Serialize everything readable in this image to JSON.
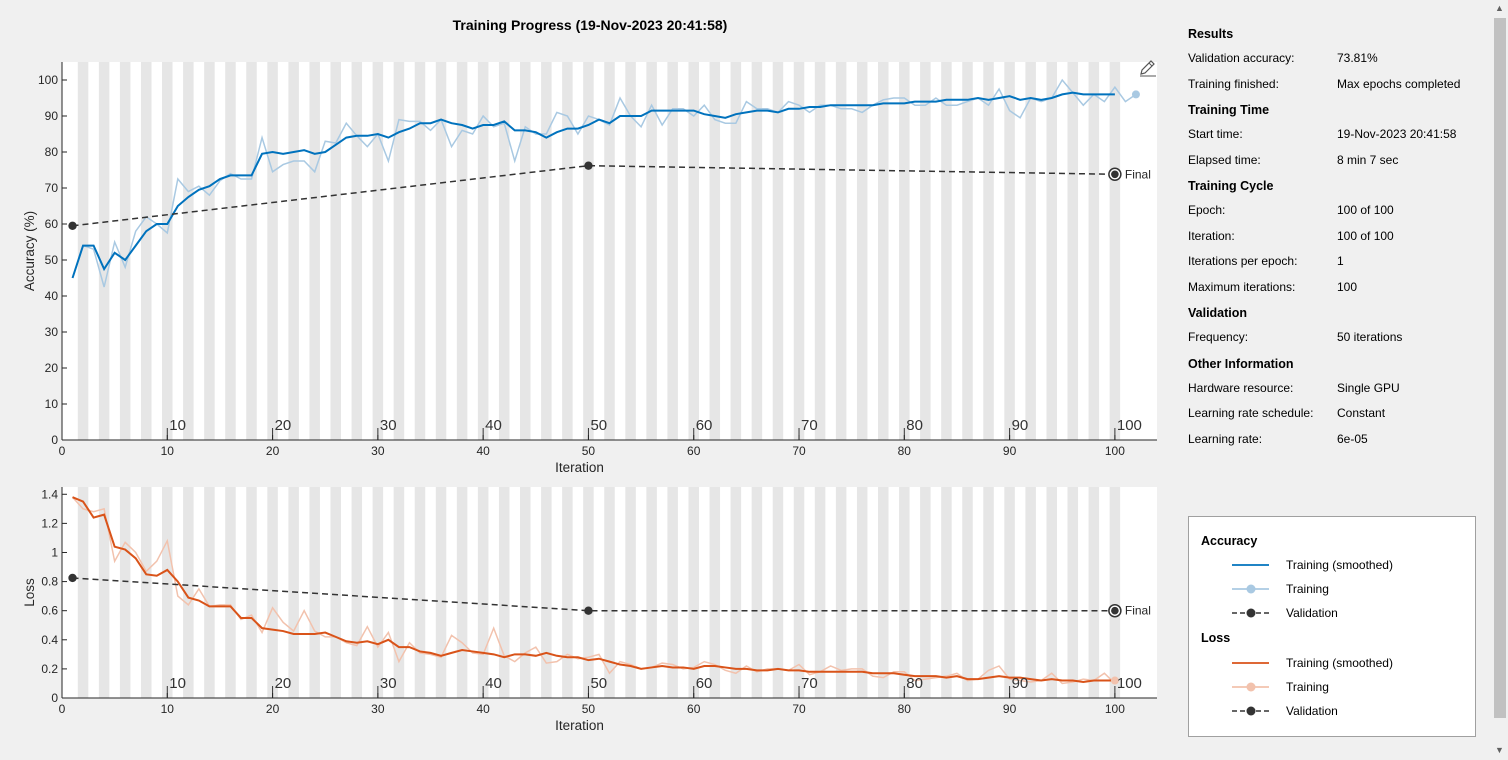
{
  "title": "Training Progress (19-Nov-2023 20:41:58)",
  "info": {
    "sections": [
      {
        "heading": "Results",
        "rows": [
          {
            "label": "Validation accuracy:",
            "value": "73.81%"
          },
          {
            "label": "Training finished:",
            "value": "Max epochs completed"
          }
        ]
      },
      {
        "heading": "Training Time",
        "rows": [
          {
            "label": "Start time:",
            "value": "19-Nov-2023 20:41:58"
          },
          {
            "label": "Elapsed time:",
            "value": "8 min 7 sec"
          }
        ]
      },
      {
        "heading": "Training Cycle",
        "rows": [
          {
            "label": "Epoch:",
            "value": "100 of 100"
          },
          {
            "label": "Iteration:",
            "value": "100 of 100"
          },
          {
            "label": "Iterations per epoch:",
            "value": "1"
          },
          {
            "label": "Maximum iterations:",
            "value": "100"
          }
        ]
      },
      {
        "heading": "Validation",
        "rows": [
          {
            "label": "Frequency:",
            "value": "50 iterations"
          }
        ]
      },
      {
        "heading": "Other Information",
        "rows": [
          {
            "label": "Hardware resource:",
            "value": "Single GPU"
          },
          {
            "label": "Learning rate schedule:",
            "value": "Constant"
          },
          {
            "label": "Learning rate:",
            "value": "6e-05"
          }
        ]
      }
    ]
  },
  "legend": {
    "accuracy_heading": "Accuracy",
    "loss_heading": "Loss",
    "training_smoothed": "Training (smoothed)",
    "training": "Training",
    "validation": "Validation"
  },
  "colors": {
    "acc_smooth": "#0072bd",
    "acc_train": "#a9c9e2",
    "loss_smooth": "#d95319",
    "loss_train": "#f2c2ad",
    "validation": "#333333"
  },
  "chart_data": [
    {
      "type": "line",
      "xlabel": "Iteration",
      "ylabel": "Accuracy (%)",
      "xlim": [
        0,
        104
      ],
      "ylim": [
        0,
        105
      ],
      "xticks": [
        0,
        10,
        20,
        30,
        40,
        50,
        60,
        70,
        80,
        90,
        100
      ],
      "yticks": [
        0,
        10,
        20,
        30,
        40,
        50,
        60,
        70,
        80,
        90,
        100
      ],
      "epoch_labels": [
        "10",
        "20",
        "30",
        "40",
        "50",
        "60",
        "70",
        "80",
        "90",
        "100"
      ],
      "final_label": "Final",
      "series": [
        {
          "name": "Training (smoothed)",
          "x_start": 1,
          "values": [
            45,
            54,
            54,
            47.5,
            52,
            50,
            54,
            58,
            60,
            60,
            65,
            67.5,
            69.5,
            70.5,
            72.5,
            73.5,
            73.5,
            73.5,
            79.5,
            80,
            79.5,
            80,
            80.5,
            79.5,
            80,
            82,
            84,
            84.5,
            84.5,
            85,
            84,
            85.5,
            86.5,
            88,
            88,
            89,
            88,
            87.5,
            86.5,
            87.5,
            87.5,
            88.5,
            86,
            86,
            85.5,
            84,
            85.5,
            86.5,
            86.5,
            87.5,
            89,
            88,
            90,
            90,
            90,
            91.5,
            91.5,
            91.5,
            91.5,
            91.5,
            90.5,
            90,
            89.5,
            90.5,
            91,
            91.5,
            91.5,
            91,
            92,
            92,
            92.5,
            92.5,
            93,
            93,
            93,
            93,
            93,
            93.5,
            93.5,
            93.5,
            94,
            94,
            94,
            94.5,
            94.5,
            94.5,
            95,
            94.5,
            95,
            95.5,
            94.5,
            95,
            94.5,
            95,
            96,
            96.5,
            96,
            96,
            96,
            96
          ]
        },
        {
          "name": "Training",
          "x_start": 1,
          "values": [
            45,
            54,
            53,
            42.5,
            55,
            48,
            58,
            62,
            60,
            57.5,
            72.5,
            69,
            70.5,
            68,
            72,
            74,
            72.5,
            72.5,
            84,
            74.5,
            76.5,
            77.5,
            77.5,
            74.5,
            83,
            82.5,
            88,
            84.5,
            81.5,
            85,
            77.5,
            89,
            88.5,
            88.5,
            86,
            89,
            81.5,
            86,
            85,
            90,
            87,
            88,
            77.5,
            87,
            85,
            85,
            91,
            90,
            85,
            90,
            89,
            87.5,
            95,
            90,
            87,
            93,
            87.5,
            92,
            92,
            90,
            93,
            89,
            88,
            88,
            94,
            92,
            92,
            91,
            94,
            93,
            91,
            93,
            93,
            92,
            92,
            91,
            93,
            94.5,
            95,
            95,
            93,
            93,
            95,
            93,
            93,
            94,
            95,
            93,
            97.5,
            91.5,
            89.5,
            95,
            94,
            95,
            100,
            96.5,
            93,
            96,
            94,
            98,
            94,
            96
          ]
        },
        {
          "name": "Validation",
          "points": [
            [
              1,
              59.5
            ],
            [
              50,
              76.2
            ],
            [
              100,
              73.81
            ]
          ]
        }
      ]
    },
    {
      "type": "line",
      "xlabel": "Iteration",
      "ylabel": "Loss",
      "xlim": [
        0,
        104
      ],
      "ylim": [
        0,
        1.45
      ],
      "xticks": [
        0,
        10,
        20,
        30,
        40,
        50,
        60,
        70,
        80,
        90,
        100
      ],
      "yticks": [
        0,
        0.2,
        0.4,
        0.6,
        0.8,
        1,
        1.2,
        1.4
      ],
      "ytick_labels": [
        "0",
        "0.2",
        "0.4",
        "0.6",
        "0.8",
        "1",
        "1.2",
        "1.4"
      ],
      "epoch_labels": [
        "10",
        "20",
        "30",
        "40",
        "50",
        "60",
        "70",
        "80",
        "90",
        "100"
      ],
      "final_label": "Final",
      "series": [
        {
          "name": "Training (smoothed)",
          "x_start": 1,
          "values": [
            1.38,
            1.35,
            1.24,
            1.26,
            1.04,
            1.02,
            0.96,
            0.85,
            0.84,
            0.88,
            0.8,
            0.69,
            0.67,
            0.63,
            0.63,
            0.63,
            0.55,
            0.55,
            0.48,
            0.47,
            0.46,
            0.44,
            0.44,
            0.44,
            0.45,
            0.42,
            0.39,
            0.38,
            0.39,
            0.37,
            0.4,
            0.35,
            0.35,
            0.32,
            0.31,
            0.29,
            0.31,
            0.33,
            0.32,
            0.31,
            0.3,
            0.28,
            0.3,
            0.3,
            0.29,
            0.31,
            0.29,
            0.28,
            0.28,
            0.26,
            0.27,
            0.25,
            0.23,
            0.22,
            0.2,
            0.21,
            0.22,
            0.21,
            0.21,
            0.2,
            0.22,
            0.22,
            0.21,
            0.2,
            0.2,
            0.19,
            0.19,
            0.2,
            0.19,
            0.19,
            0.18,
            0.18,
            0.18,
            0.18,
            0.18,
            0.18,
            0.17,
            0.17,
            0.17,
            0.16,
            0.15,
            0.15,
            0.15,
            0.14,
            0.15,
            0.13,
            0.13,
            0.14,
            0.15,
            0.14,
            0.14,
            0.13,
            0.12,
            0.13,
            0.12,
            0.12,
            0.11,
            0.12,
            0.12,
            0.12
          ]
        },
        {
          "name": "Training",
          "x_start": 1,
          "values": [
            1.38,
            1.3,
            1.28,
            1.3,
            0.94,
            1.07,
            1,
            0.87,
            0.94,
            1.08,
            0.7,
            0.64,
            0.75,
            0.63,
            0.64,
            0.64,
            0.54,
            0.57,
            0.45,
            0.62,
            0.52,
            0.46,
            0.6,
            0.46,
            0.42,
            0.42,
            0.38,
            0.36,
            0.49,
            0.35,
            0.45,
            0.25,
            0.38,
            0.31,
            0.3,
            0.28,
            0.43,
            0.38,
            0.31,
            0.3,
            0.48,
            0.29,
            0.25,
            0.31,
            0.35,
            0.24,
            0.25,
            0.3,
            0.27,
            0.28,
            0.3,
            0.17,
            0.25,
            0.23,
            0.2,
            0.21,
            0.24,
            0.23,
            0.2,
            0.21,
            0.25,
            0.23,
            0.19,
            0.17,
            0.22,
            0.18,
            0.2,
            0.2,
            0.19,
            0.23,
            0.16,
            0.18,
            0.22,
            0.19,
            0.2,
            0.2,
            0.15,
            0.14,
            0.18,
            0.18,
            0.12,
            0.13,
            0.14,
            0.15,
            0.17,
            0.12,
            0.13,
            0.19,
            0.22,
            0.13,
            0.12,
            0.11,
            0.12,
            0.17,
            0.1,
            0.11,
            0.13,
            0.12,
            0.17,
            0.1
          ]
        },
        {
          "name": "Validation",
          "points": [
            [
              1,
              0.825
            ],
            [
              50,
              0.6
            ],
            [
              100,
              0.6
            ]
          ]
        }
      ]
    }
  ]
}
